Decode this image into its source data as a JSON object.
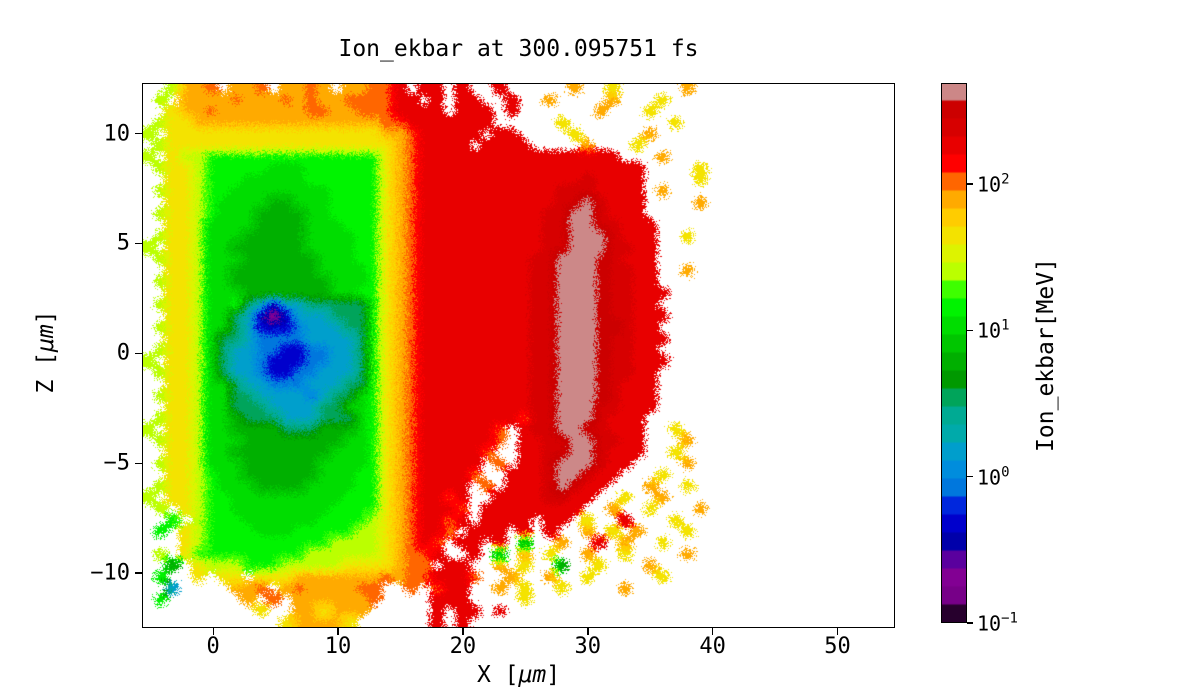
{
  "title": "Ion_ekbar at 300.095751 fs",
  "xlabel": {
    "pre": "X [",
    "unit": "μm",
    "post": "]"
  },
  "ylabel": {
    "pre": "Z [",
    "unit": "μm",
    "post": "]"
  },
  "x_axis": {
    "tick_labels": [
      "0",
      "10",
      "20",
      "30",
      "40",
      "50"
    ]
  },
  "z_axis": {
    "tick_labels": [
      "10",
      "5",
      "0",
      "−5",
      "−10"
    ]
  },
  "colorbar": {
    "label": "Ion_ekbar[MeV]",
    "ticks": [
      {
        "value": 100,
        "base": "10",
        "exp": "2"
      },
      {
        "value": 10,
        "base": "10",
        "exp": "1"
      },
      {
        "value": 1,
        "base": "10",
        "exp": "0"
      },
      {
        "value": 0.1,
        "base": "10",
        "exp": "−1"
      }
    ]
  },
  "chart_data": {
    "type": "heatmap",
    "title": "Ion_ekbar at 300.095751 fs",
    "xlabel": "X [μm]",
    "ylabel": "Z [μm]",
    "colorbar_label": "Ion_ekbar[MeV]",
    "x_range": [
      -5.7,
      54.6
    ],
    "z_range": [
      -12.5,
      12.3
    ],
    "x_ticks": [
      0,
      10,
      20,
      30,
      40,
      50
    ],
    "z_ticks": [
      10,
      5,
      0,
      -5,
      -10
    ],
    "scale": "log",
    "clim": [
      0.1,
      490
    ],
    "levels": 30,
    "colormap": "nipy_spectral",
    "colormap_stops": [
      [
        0.0,
        0,
        0,
        0
      ],
      [
        0.05,
        119,
        0,
        136
      ],
      [
        0.1,
        136,
        0,
        153
      ],
      [
        0.15,
        0,
        0,
        170
      ],
      [
        0.2,
        0,
        0,
        221
      ],
      [
        0.25,
        0,
        119,
        221
      ],
      [
        0.3,
        0,
        153,
        221
      ],
      [
        0.35,
        0,
        170,
        170
      ],
      [
        0.4,
        0,
        170,
        136
      ],
      [
        0.45,
        0,
        153,
        0
      ],
      [
        0.5,
        0,
        187,
        0
      ],
      [
        0.55,
        0,
        221,
        0
      ],
      [
        0.6,
        0,
        255,
        0
      ],
      [
        0.65,
        187,
        255,
        0
      ],
      [
        0.7,
        238,
        238,
        0
      ],
      [
        0.75,
        255,
        204,
        0
      ],
      [
        0.8,
        255,
        153,
        0
      ],
      [
        0.85,
        255,
        0,
        0
      ],
      [
        0.9,
        221,
        0,
        0
      ],
      [
        0.95,
        204,
        0,
        0
      ],
      [
        1.0,
        204,
        204,
        204
      ]
    ],
    "background": "#ffffff",
    "grid_cols": 60,
    "grid_rows_note": "chars map to MeV via value_palette; '.' = no data (white)",
    "value_palette": {
      "a": 0.15,
      "b": 0.45,
      "c": 0.9,
      "d": 1.6,
      "e": 3.2,
      "f": 6.5,
      "g": 10,
      "h": 16,
      "i": 27,
      "j": 42,
      "k": 70,
      "l": 110,
      "m": 180,
      "n": 270,
      "o": 340,
      "p": 460
    },
    "grid_rows": [
      "..ikkl.kkl.kklk.kkllm.mm.m..m.....k..j.....k..............",
      ".i.kkkklkkklklkkllllmm.m.mm..m..k....k...j................",
      "..jkklkkkkkkkllkklllmmmm.mmm.m......k...j.................",
      ".ijjkkkkkkkkkkkkkkkllmmmmmmm.....j........j...............",
      "i.jjjjjjjjjjjjjjjjjkklmmmmm.mm....j.....k.................",
      ".ijjjjjjjjjjjjjjjjjjklmmmm.mmmm....k...j..................",
      "i.jiihhhhhhhhhhhhhhjklmmmmmmmmmmmmmmmm...k................",
      ".ijjihhhhhggghhhhhhjklmmmmmmmmmmmmmmmmmm....j.............",
      "..jjihhhggggghhhhhhjklmmmmmmmmmmmmmnmmmm....j.............",
      ".ijjihhgggggggghhhhjklmmmmmmmmmmmnnnmmmm.k................",
      "..jjihggggffggghhhhjklmmmmmmmmmmmnnpnmmm....k.............",
      ".ijjihgggffffgghhhhjklmmmmmmmmmmnnppnmmm..................",
      "..jjiggggffffggghhhjklmmmmmmmmmmnnppnnmmm.................",
      ".ijjigggfffffgggghhjklmmmmmmmmmmnnpppnmmm..j..............",
      "i.jjiggffffffgggghhjklmmmmmmmmmmnnpppnnmm.................",
      ".ijjigggffffffggghhjklmmmmmmmmmnnppponmmm.................",
      "..jjiggfffffffgggghjklmmmmmmmmmnnppponnmm..k..............",
      ".ijjiggffffffffggghjklmmmmmmmmmnnppponnmm.................",
      "..jjigggfffffffgghhjklmmmmmmmmmnnppponnmmm................",
      ".ijjigghedbddeeeeehjklmmmmmmmmmnnppponnmm.................",
      "..jjiggedbabdddeeehjklmmmmmmmmmnnppponnmmm................",
      ".ijjiggedbbbcdddeehjklmmmmmmmmmnnpppoonmm.................",
      "..jjigeedccccddddehjklmmmmmmmmmnnppponnmmm................",
      ".ijjigeddccbbccddehjklmmmmmmmmmnnppponnmm.................",
      "i.jjigeddcbbbccddehjklmmmmmmmmmnnppponnmmm................",
      ".ijjigeddcbbccdddehjklmmmmmmmmmnnppponnmm.................",
      "..jjiggeddcccdddeehjklmmmmmmmmmnnppponmmm.................",
      ".ijjiggeeddddcdeeghjklmmmmmmmmmnnppponmmm.................",
      "..jjiggeeeddddeegghjklmmmmmmmmmnnpppnnmmm.................",
      ".ijjiggfeeedddeeeghjklmmmmmmmmlnnpppnmmm..................",
      "i.jjiggffffeeefffghjklmmmmmml.mnnppnnmmm..j...............",
      ".ijjigggffffffffgghjklmmmmmml.mmnnppnnmm...k..............",
      "..jjiggffffffffggghjklmmmmml..mmnnppnmmm..j...............",
      ".ijjigggffffffgggghjklmmmmm.l.mmnpppnmm....k..............",
      "..jjihggffffffggghhjklmmmml..mmmnppnmm...j................",
      ".ijjihgggffffgggghhjklmmmm.l.mmmnpnmm...k..j..............",
      "i.jjihhggggggggghhhjklmmlm..mmmmnnmm..j..k................",
      ".i.jihhgggggggghhhhjklmmml.mmmmmmmm..k..j...k.............",
      "..h.ihhhgggggghhhhijklmmlm.mmmm.mm.j..m...j...............",
      ".h.jihhhhggghhhhhiijklmml.mmm.m.m..k.j.k...j..............",
      "...jihhhhhhhhhhiiiijklml.mm.m.f..k..m.k..j................",
      ".i.jhhhhhhhhhiiiiiijkllm..m.f.k.j..k..j....k..............",
      "..f.jiiihhhiiiiijjjjkll.mm..k.j..f..j...k.................",
      ".h..j.jj.jjjkkkkkkklkllmmml..k..k..j.....j................",
      "..d....kkl.klkkkkll..l.lmm..k.j..j....k...................",
      ".h......k.l.kkkkkkl....mmm....j...........................",
      ".........j..kkjkkk.....m.mm.m.............................",
      "...........jkkkkj......m.m................................"
    ]
  }
}
